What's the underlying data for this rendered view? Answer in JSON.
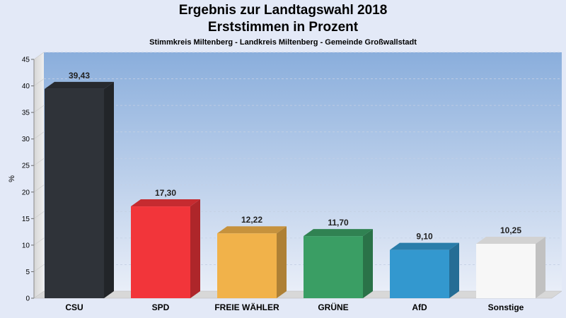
{
  "chart_data": {
    "type": "bar",
    "title": "Ergebnis zur Landtagswahl 2018",
    "subtitle_line1": "Erststimmen in Prozent",
    "subtitle_line2": "Stimmkreis Miltenberg - Landkreis Miltenberg - Gemeinde Großwallstadt",
    "ylabel": "%",
    "xlabel": "",
    "ylim": [
      0,
      45
    ],
    "yticks": [
      0,
      5,
      10,
      15,
      20,
      25,
      30,
      35,
      40,
      45
    ],
    "grid": true,
    "categories": [
      "CSU",
      "SPD",
      "FREIE WÄHLER",
      "GRÜNE",
      "AfD",
      "Sonstige"
    ],
    "values": [
      39.43,
      17.3,
      12.22,
      11.7,
      9.1,
      10.25
    ],
    "value_labels": [
      "39,43",
      "17,30",
      "12,22",
      "11,70",
      "9,10",
      "10,25"
    ],
    "colors": [
      "#2f3339",
      "#f2353a",
      "#f1b24a",
      "#3a9e64",
      "#3398cf",
      "#f7f7f7"
    ]
  }
}
